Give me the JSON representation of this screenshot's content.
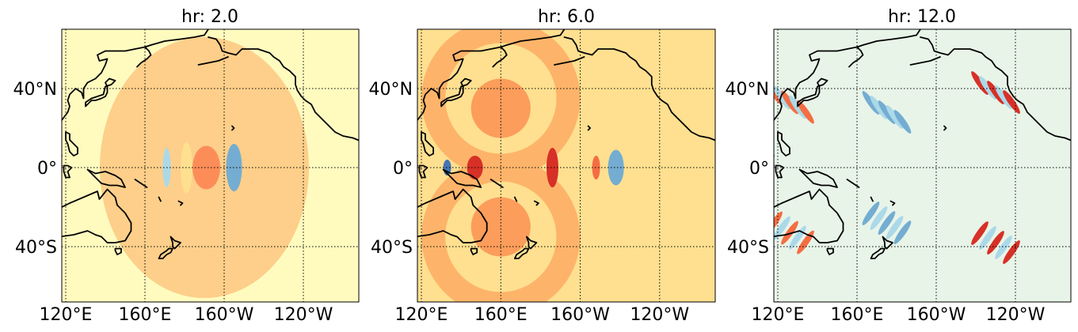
{
  "chart_data": [
    {
      "type": "heatmap",
      "title": "hr: 2.0",
      "xticks": [
        "120°E",
        "160°E",
        "160°W",
        "120°W"
      ],
      "yticks": [
        "40°N",
        "0°",
        "40°S"
      ],
      "tick_lon": [
        120,
        160,
        200,
        240
      ],
      "tick_lat": [
        40,
        0,
        -40
      ],
      "lon_range": [
        118,
        268
      ],
      "lat_range": [
        -68,
        70
      ],
      "grid": true,
      "background_color": "#FFFBBF",
      "wave": {
        "front_radius_deg": 66,
        "front_color": "#FDCF8A",
        "center": [
          190,
          0
        ],
        "pulses": [
          {
            "x": 191,
            "y": 0,
            "rx": 3.5,
            "ry": 5,
            "color": "#D73027"
          },
          {
            "x": 191,
            "y": 0,
            "rx": 7,
            "ry": 11,
            "color": "#FC8D59"
          },
          {
            "x": 181,
            "y": 0,
            "rx": 3,
            "ry": 13,
            "color": "#FEE090"
          },
          {
            "x": 205,
            "y": 0,
            "rx": 2.5,
            "ry": 5,
            "color": "#313695"
          },
          {
            "x": 205,
            "y": 0,
            "rx": 4,
            "ry": 12,
            "color": "#74ADD1"
          },
          {
            "x": 171,
            "y": 0,
            "rx": 2,
            "ry": 10,
            "color": "#ABD9E9"
          }
        ]
      }
    },
    {
      "type": "heatmap",
      "title": "hr: 6.0",
      "xticks": [
        "120°E",
        "160°E",
        "160°W",
        "120°W"
      ],
      "yticks": [
        "40°N",
        "0°",
        "40°S"
      ],
      "tick_lon": [
        120,
        160,
        200,
        240
      ],
      "tick_lat": [
        40,
        0,
        -40
      ],
      "lon_range": [
        118,
        268
      ],
      "lat_range": [
        -68,
        70
      ],
      "grid": true,
      "background_color": "#FEE090",
      "wave": {
        "rings": [
          {
            "x": 160,
            "y": 35,
            "r": 40,
            "color": "#FDB46A"
          },
          {
            "x": 160,
            "y": -35,
            "r": 40,
            "color": "#FDB46A"
          },
          {
            "x": 160,
            "y": 35,
            "r": 28,
            "color": "#FEE090"
          },
          {
            "x": 160,
            "y": -35,
            "r": 28,
            "color": "#FEE090"
          },
          {
            "x": 160,
            "y": 30,
            "r": 15,
            "color": "#FC9D5B"
          },
          {
            "x": 160,
            "y": -30,
            "r": 15,
            "color": "#FC9D5B"
          }
        ],
        "pulses": [
          {
            "x": 147,
            "y": 0,
            "rx": 4,
            "ry": 6,
            "color": "#D73027"
          },
          {
            "x": 186,
            "y": 0,
            "rx": 3,
            "ry": 10,
            "color": "#D73027"
          },
          {
            "x": 218,
            "y": 0,
            "rx": 2.5,
            "ry": 5,
            "color": "#313695"
          },
          {
            "x": 218,
            "y": 0,
            "rx": 4,
            "ry": 9,
            "color": "#74ADD1"
          },
          {
            "x": 133,
            "y": 0,
            "rx": 2,
            "ry": 4,
            "color": "#4575B4"
          },
          {
            "x": 208,
            "y": 0,
            "rx": 2,
            "ry": 6,
            "color": "#F46D43"
          }
        ]
      }
    },
    {
      "type": "heatmap",
      "title": "hr: 12.0",
      "xticks": [
        "120°E",
        "160°E",
        "160°W",
        "120°W"
      ],
      "yticks": [
        "40°N",
        "0°",
        "40°S"
      ],
      "tick_lon": [
        120,
        160,
        200,
        240
      ],
      "tick_lat": [
        40,
        0,
        -40
      ],
      "lon_range": [
        118,
        268
      ],
      "lat_range": [
        -68,
        70
      ],
      "grid": true,
      "background_color": "#E8F4E8",
      "wave": {
        "bands": [
          {
            "x": 230,
            "y": 38,
            "color": "#D73027"
          },
          {
            "x": 230,
            "y": -38,
            "color": "#D73027"
          },
          {
            "x": 126,
            "y": 33,
            "color": "#F46D43"
          },
          {
            "x": 126,
            "y": -33,
            "color": "#F46D43"
          },
          {
            "x": 175,
            "y": 28,
            "color": "#74ADD1"
          },
          {
            "x": 175,
            "y": -28,
            "color": "#74ADD1"
          }
        ]
      }
    }
  ],
  "coast_legend": {
    "coast_color": "#000000",
    "grid_color": "#000000"
  }
}
